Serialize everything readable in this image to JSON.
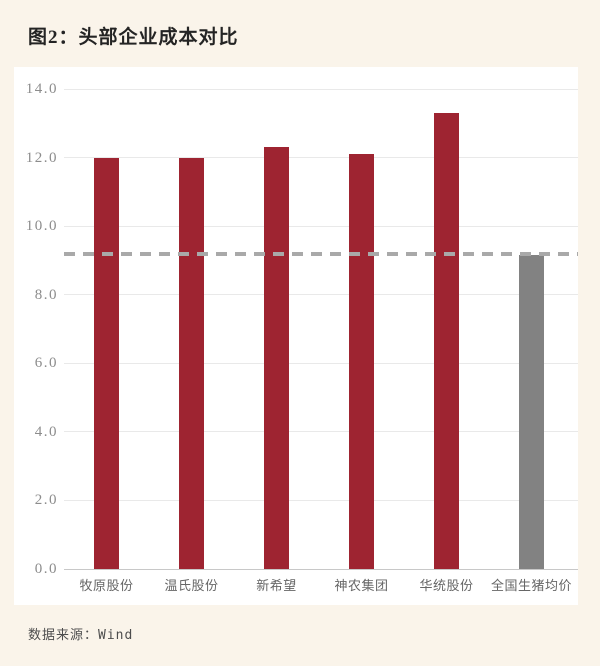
{
  "page": {
    "title": "图2：头部企业成本对比",
    "source_note": "数据来源：Wind"
  },
  "colors": {
    "page_bg": "#faf4ea",
    "panel_bg": "#ffffff",
    "bar_red": "#9e2431",
    "bar_gray": "#828282",
    "reference_line": "#a9a9a9",
    "gridline": "#e9e9e9",
    "axis_line": "#c8c8c8",
    "tick_label": "#8c8c8c",
    "category_label": "#666666",
    "title_text": "#242424",
    "source_text": "#4d4d4d"
  },
  "chart_data": {
    "type": "bar",
    "title": "图2：头部企业成本对比",
    "categories": [
      "牧原股份",
      "温氏股份",
      "新希望",
      "神农集团",
      "华统股份",
      "全国生猪均价"
    ],
    "values": [
      12.0,
      12.0,
      12.3,
      12.1,
      13.3,
      9.15
    ],
    "bar_colors": [
      "#9e2431",
      "#9e2431",
      "#9e2431",
      "#9e2431",
      "#9e2431",
      "#828282"
    ],
    "reference_line_value": 9.2,
    "xlabel": "",
    "ylabel": "",
    "ylim": [
      0,
      14
    ],
    "ytick_step": 2,
    "ytick_labels": [
      "0.0",
      "2.0",
      "4.0",
      "6.0",
      "8.0",
      "10.0",
      "12.0",
      "14.0"
    ],
    "grid": true,
    "legend": "none",
    "source": "数据来源：Wind"
  }
}
